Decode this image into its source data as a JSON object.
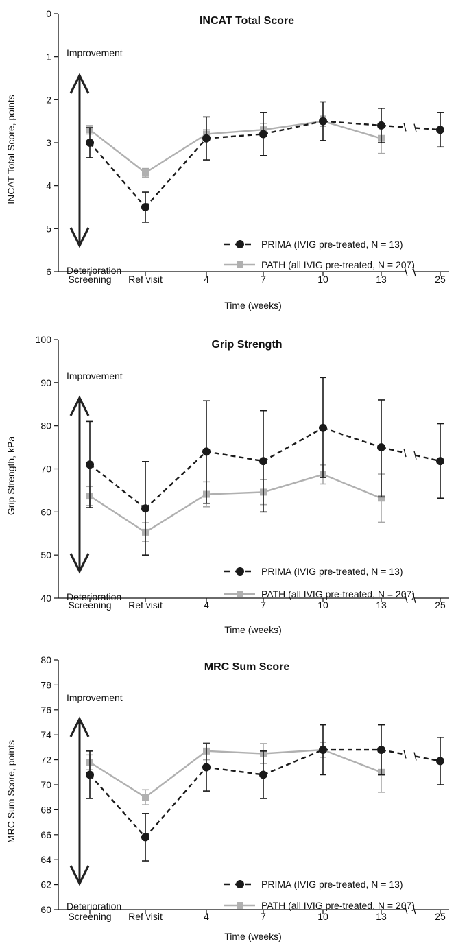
{
  "chart_data": [
    {
      "type": "line",
      "title": "INCAT Total Score",
      "xlabel": "Time (weeks)",
      "ylabel": "INCAT Total Score, points",
      "ylim": [
        0,
        6
      ],
      "y_inverted": true,
      "yticks": [
        "0",
        "1",
        "2",
        "3",
        "4",
        "5",
        "6"
      ],
      "categories": [
        "Screening",
        "Ref visit",
        "4",
        "7",
        "10",
        "13",
        "25"
      ],
      "axis_break_between": [
        "13",
        "25"
      ],
      "annotations": {
        "top": "Improvement",
        "bottom": "Deterioration"
      },
      "legend_position": "bottom-right",
      "series": [
        {
          "name": "PRIMA (IVIG pre-treated, N = 13)",
          "style": "dashed",
          "marker": "circle",
          "color": "#1a1a1a",
          "values": [
            3.0,
            4.5,
            2.9,
            2.8,
            2.5,
            2.6,
            2.7
          ],
          "err_low": [
            3.35,
            4.85,
            3.4,
            3.3,
            2.95,
            3.0,
            3.1
          ],
          "err_high": [
            2.65,
            4.15,
            2.4,
            2.3,
            2.05,
            2.2,
            2.3
          ]
        },
        {
          "name": "PATH (all IVIG pre-treated, N = 207)",
          "style": "solid",
          "marker": "square",
          "color": "#b0b0b0",
          "values": [
            2.7,
            3.7,
            2.8,
            2.7,
            2.5,
            2.9,
            null
          ],
          "err_low": [
            2.8,
            3.8,
            2.9,
            2.85,
            2.62,
            3.25,
            null
          ],
          "err_high": [
            2.6,
            3.6,
            2.7,
            2.55,
            2.38,
            2.55,
            null
          ]
        }
      ]
    },
    {
      "type": "line",
      "title": "Grip Strength",
      "xlabel": "Time (weeks)",
      "ylabel": "Grip Strength, kPa",
      "ylim": [
        40,
        100
      ],
      "y_inverted": false,
      "yticks": [
        "40",
        "50",
        "60",
        "70",
        "80",
        "90",
        "100"
      ],
      "categories": [
        "Screening",
        "Ref visit",
        "4",
        "7",
        "10",
        "13",
        "25"
      ],
      "axis_break_between": [
        "13",
        "25"
      ],
      "annotations": {
        "top": "Improvement",
        "bottom": "Deterioration"
      },
      "legend_position": "bottom-right",
      "series": [
        {
          "name": "PRIMA (IVIG pre-treated, N = 13)",
          "style": "dashed",
          "marker": "circle",
          "color": "#1a1a1a",
          "values": [
            71,
            60.8,
            74,
            71.8,
            79.5,
            75,
            71.8
          ],
          "err_low": [
            61,
            50,
            62,
            60,
            68,
            63.5,
            63.2
          ],
          "err_high": [
            81,
            71.7,
            85.8,
            83.5,
            91.2,
            86,
            80.5
          ]
        },
        {
          "name": "PATH (all IVIG pre-treated, N = 207)",
          "style": "solid",
          "marker": "square",
          "color": "#b0b0b0",
          "values": [
            63.7,
            55.3,
            64.1,
            64.6,
            68.7,
            63.2,
            null
          ],
          "err_low": [
            61.5,
            53.2,
            61.2,
            61.7,
            66.5,
            57.6,
            null
          ],
          "err_high": [
            65.9,
            57.5,
            67,
            67.5,
            70.9,
            68.8,
            null
          ]
        }
      ]
    },
    {
      "type": "line",
      "title": "MRC Sum Score",
      "xlabel": "Time (weeks)",
      "ylabel": "MRC Sum Score, points",
      "ylim": [
        60,
        80
      ],
      "y_inverted": false,
      "yticks": [
        "60",
        "62",
        "64",
        "66",
        "68",
        "70",
        "72",
        "74",
        "76",
        "78",
        "80"
      ],
      "categories": [
        "Screening",
        "Ref visit",
        "4",
        "7",
        "10",
        "13",
        "25"
      ],
      "axis_break_between": [
        "13",
        "25"
      ],
      "annotations": {
        "top": "Improvement",
        "bottom": "Deterioration"
      },
      "legend_position": "bottom-right",
      "series": [
        {
          "name": "PRIMA (IVIG pre-treated, N = 13)",
          "style": "dashed",
          "marker": "circle",
          "color": "#1a1a1a",
          "values": [
            70.8,
            65.8,
            71.4,
            70.8,
            72.8,
            72.8,
            71.9
          ],
          "err_low": [
            68.9,
            63.9,
            69.5,
            68.9,
            70.8,
            70.8,
            70.0
          ],
          "err_high": [
            72.7,
            67.7,
            73.3,
            72.7,
            74.8,
            74.8,
            73.8
          ]
        },
        {
          "name": "PATH (all IVIG pre-treated, N = 207)",
          "style": "solid",
          "marker": "square",
          "color": "#b0b0b0",
          "values": [
            71.8,
            69.0,
            72.7,
            72.5,
            72.8,
            71.0,
            null
          ],
          "err_low": [
            71.2,
            68.4,
            72.0,
            71.7,
            72.2,
            69.4,
            null
          ],
          "err_high": [
            72.4,
            69.6,
            73.4,
            73.3,
            73.4,
            72.6,
            null
          ]
        }
      ]
    }
  ]
}
